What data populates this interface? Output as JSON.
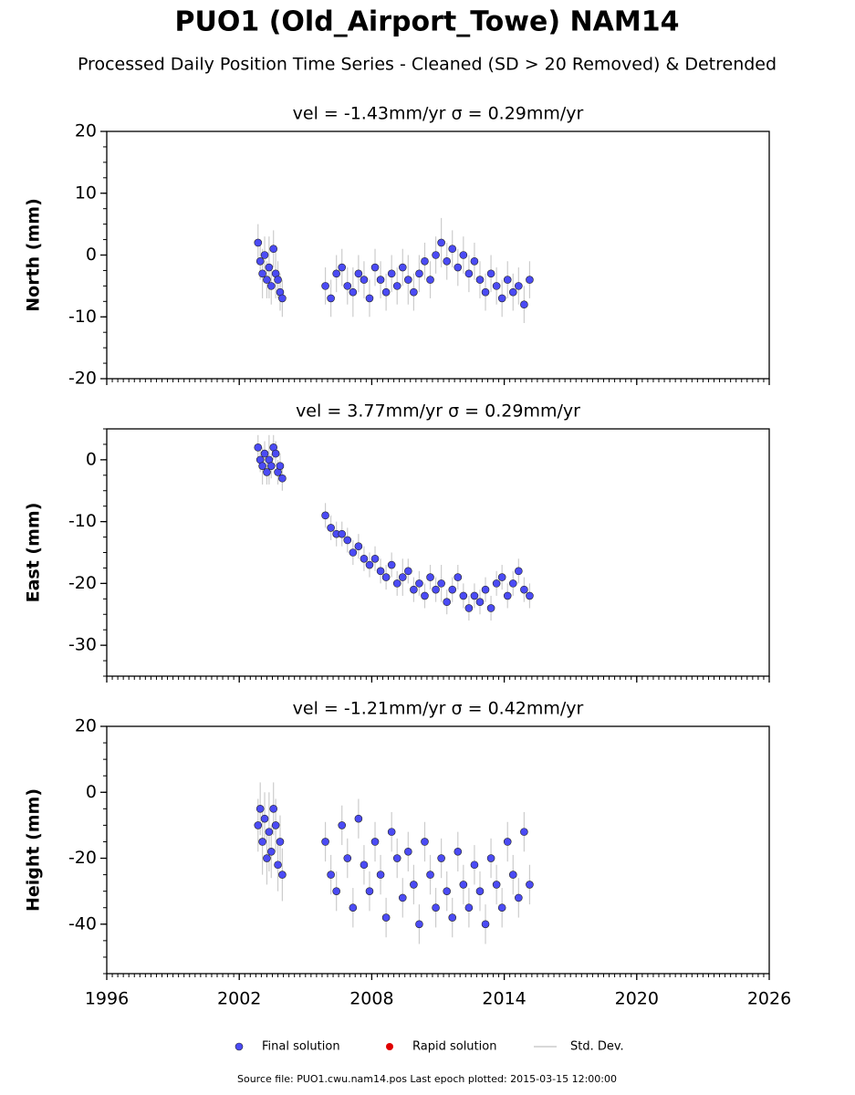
{
  "title": "PUO1 (Old_Airport_Towe) NAM14",
  "subtitle": "Processed Daily Position Time Series - Cleaned (SD > 20 Removed) & Detrended",
  "legend": [
    {
      "name": "Final solution",
      "color": "#4b4bf5"
    },
    {
      "name": "Rapid solution",
      "color": "#e00000"
    },
    {
      "name": "Std. Dev.",
      "color": "#cccccc"
    }
  ],
  "source": "Source file: PUO1.cwu.nam14.pos  Last epoch plotted: 2015-03-15 12:00:00",
  "chart_data": [
    {
      "type": "scatter",
      "title": "vel = -1.43mm/yr   σ = 0.29mm/yr",
      "ylabel": "North (mm)",
      "x": [
        2002.85,
        2002.95,
        2003.05,
        2003.15,
        2003.25,
        2003.35,
        2003.45,
        2003.55,
        2003.65,
        2003.75,
        2003.85,
        2003.95,
        2005.9,
        2006.15,
        2006.4,
        2006.65,
        2006.9,
        2007.15,
        2007.4,
        2007.65,
        2007.9,
        2008.15,
        2008.4,
        2008.65,
        2008.9,
        2009.15,
        2009.4,
        2009.65,
        2009.9,
        2010.15,
        2010.4,
        2010.65,
        2010.9,
        2011.15,
        2011.4,
        2011.65,
        2011.9,
        2012.15,
        2012.4,
        2012.65,
        2012.9,
        2013.15,
        2013.4,
        2013.65,
        2013.9,
        2014.15,
        2014.4,
        2014.65,
        2014.9,
        2015.15
      ],
      "series": [
        {
          "color": "#4b4bf5",
          "values": [
            2,
            -1,
            -3,
            0,
            -4,
            -2,
            -5,
            1,
            -3,
            -4,
            -6,
            -7,
            -5,
            -7,
            -3,
            -2,
            -5,
            -6,
            -3,
            -4,
            -7,
            -2,
            -4,
            -6,
            -3,
            -5,
            -2,
            -4,
            -6,
            -3,
            -1,
            -4,
            0,
            2,
            -1,
            1,
            -2,
            0,
            -3,
            -1,
            -4,
            -6,
            -3,
            -5,
            -7,
            -4,
            -6,
            -5,
            -8,
            -4
          ],
          "errors": [
            3,
            3,
            4,
            3,
            3,
            5,
            3,
            3,
            4,
            3,
            3,
            3,
            3,
            3,
            3,
            3,
            3,
            4,
            3,
            3,
            3,
            3,
            3,
            3,
            3,
            3,
            3,
            4,
            3,
            3,
            3,
            3,
            3,
            4,
            3,
            3,
            3,
            3,
            3,
            3,
            3,
            3,
            3,
            3,
            3,
            3,
            3,
            3,
            3,
            3
          ]
        }
      ],
      "xlim": [
        1996,
        2026
      ],
      "xticks": [
        1996,
        2002,
        2008,
        2014,
        2020,
        2026
      ],
      "ylim": [
        -20,
        20
      ],
      "yticks": [
        -20,
        -10,
        0,
        10,
        20
      ]
    },
    {
      "type": "scatter",
      "title": "vel = 3.77mm/yr   σ = 0.29mm/yr",
      "ylabel": "East (mm)",
      "x": [
        2002.85,
        2002.95,
        2003.05,
        2003.15,
        2003.25,
        2003.35,
        2003.45,
        2003.55,
        2003.65,
        2003.75,
        2003.85,
        2003.95,
        2005.9,
        2006.15,
        2006.4,
        2006.65,
        2006.9,
        2007.15,
        2007.4,
        2007.65,
        2007.9,
        2008.15,
        2008.4,
        2008.65,
        2008.9,
        2009.15,
        2009.4,
        2009.65,
        2009.9,
        2010.15,
        2010.4,
        2010.65,
        2010.9,
        2011.15,
        2011.4,
        2011.65,
        2011.9,
        2012.15,
        2012.4,
        2012.65,
        2012.9,
        2013.15,
        2013.4,
        2013.65,
        2013.9,
        2014.15,
        2014.4,
        2014.65,
        2014.9,
        2015.15
      ],
      "series": [
        {
          "color": "#4b4bf5",
          "values": [
            2,
            0,
            -1,
            1,
            -2,
            0,
            -1,
            2,
            1,
            -2,
            -1,
            -3,
            -9,
            -11,
            -12,
            -12,
            -13,
            -15,
            -14,
            -16,
            -17,
            -16,
            -18,
            -19,
            -17,
            -20,
            -19,
            -18,
            -21,
            -20,
            -22,
            -19,
            -21,
            -20,
            -23,
            -21,
            -19,
            -22,
            -24,
            -22,
            -23,
            -21,
            -24,
            -20,
            -19,
            -22,
            -20,
            -18,
            -21,
            -22
          ],
          "errors": [
            2,
            2,
            3,
            2,
            2,
            4,
            2,
            2,
            2,
            2,
            2,
            2,
            2,
            2,
            2,
            2,
            2,
            2,
            2,
            2,
            2,
            2,
            2,
            2,
            2,
            2,
            3,
            2,
            2,
            2,
            2,
            2,
            2,
            3,
            2,
            2,
            2,
            2,
            2,
            2,
            2,
            2,
            2,
            2,
            2,
            2,
            2,
            2,
            2,
            2
          ]
        }
      ],
      "xlim": [
        1996,
        2026
      ],
      "xticks": [
        1996,
        2002,
        2008,
        2014,
        2020,
        2026
      ],
      "ylim": [
        -35,
        5
      ],
      "yticks": [
        -30,
        -20,
        -10,
        0
      ]
    },
    {
      "type": "scatter",
      "title": "vel = -1.21mm/yr   σ = 0.42mm/yr",
      "ylabel": "Height (mm)",
      "x": [
        2002.85,
        2002.95,
        2003.05,
        2003.15,
        2003.25,
        2003.35,
        2003.45,
        2003.55,
        2003.65,
        2003.75,
        2003.85,
        2003.95,
        2005.9,
        2006.15,
        2006.4,
        2006.65,
        2006.9,
        2007.15,
        2007.4,
        2007.65,
        2007.9,
        2008.15,
        2008.4,
        2008.65,
        2008.9,
        2009.15,
        2009.4,
        2009.65,
        2009.9,
        2010.15,
        2010.4,
        2010.65,
        2010.9,
        2011.15,
        2011.4,
        2011.65,
        2011.9,
        2012.15,
        2012.4,
        2012.65,
        2012.9,
        2013.15,
        2013.4,
        2013.65,
        2013.9,
        2014.15,
        2014.4,
        2014.65,
        2014.9,
        2015.15
      ],
      "series": [
        {
          "color": "#4b4bf5",
          "values": [
            -10,
            -5,
            -15,
            -8,
            -20,
            -12,
            -18,
            -5,
            -10,
            -22,
            -15,
            -25,
            -15,
            -25,
            -30,
            -10,
            -20,
            -35,
            -8,
            -22,
            -30,
            -15,
            -25,
            -38,
            -12,
            -20,
            -32,
            -18,
            -28,
            -40,
            -15,
            -25,
            -35,
            -20,
            -30,
            -38,
            -18,
            -28,
            -35,
            -22,
            -30,
            -40,
            -20,
            -28,
            -35,
            -15,
            -25,
            -32,
            -12,
            -28
          ],
          "errors": [
            8,
            8,
            10,
            8,
            8,
            12,
            8,
            8,
            8,
            8,
            8,
            8,
            6,
            6,
            6,
            6,
            6,
            6,
            6,
            6,
            6,
            6,
            6,
            6,
            6,
            6,
            6,
            6,
            6,
            6,
            6,
            6,
            6,
            6,
            6,
            6,
            6,
            6,
            6,
            6,
            6,
            6,
            6,
            6,
            6,
            6,
            6,
            6,
            6,
            6
          ]
        }
      ],
      "xlim": [
        1996,
        2026
      ],
      "xticks": [
        1996,
        2002,
        2008,
        2014,
        2020,
        2026
      ],
      "ylim": [
        -55,
        20
      ],
      "yticks": [
        -40,
        -20,
        0,
        20
      ]
    }
  ]
}
